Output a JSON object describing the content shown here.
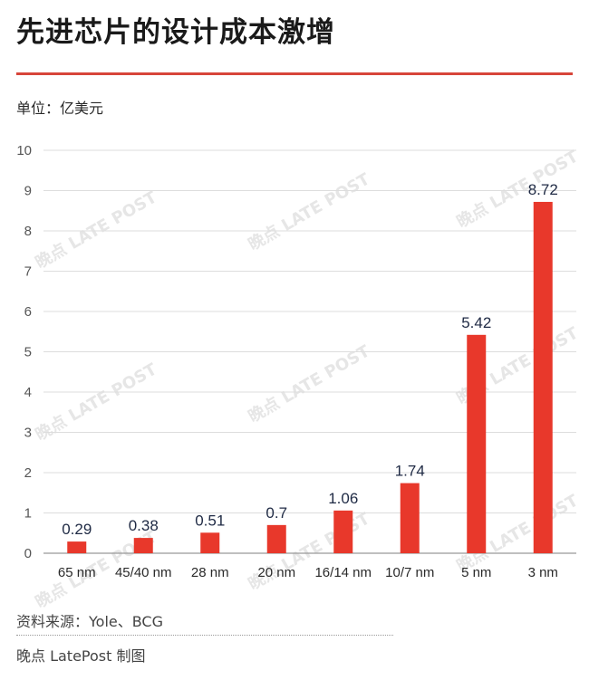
{
  "header": {
    "title": "先进芯片的设计成本激增",
    "unit": "单位：亿美元"
  },
  "footer": {
    "source": "资料来源：Yole、BCG",
    "credit": "晚点 LatePost 制图"
  },
  "watermark": {
    "text": "晚点 LATE POST"
  },
  "colors": {
    "bar": "#e8382b",
    "accent_rule": "#d7453a",
    "grid": "#dddddd",
    "axis_text": "#555555"
  },
  "chart_data": {
    "type": "bar",
    "categories": [
      "65 nm",
      "45/40 nm",
      "28 nm",
      "20 nm",
      "16/14 nm",
      "10/7 nm",
      "5 nm",
      "3 nm"
    ],
    "values": [
      0.29,
      0.38,
      0.51,
      0.7,
      1.06,
      1.74,
      5.42,
      8.72
    ],
    "value_labels": [
      "0.29",
      "0.38",
      "0.51",
      "0.7",
      "1.06",
      "1.74",
      "5.42",
      "8.72"
    ],
    "title": "先进芯片的设计成本激增",
    "xlabel": "",
    "ylabel": "单位：亿美元",
    "ylim": [
      0,
      10
    ],
    "yticks": [
      0,
      1,
      2,
      3,
      4,
      5,
      6,
      7,
      8,
      9,
      10
    ],
    "grid": true,
    "legend": "none"
  }
}
